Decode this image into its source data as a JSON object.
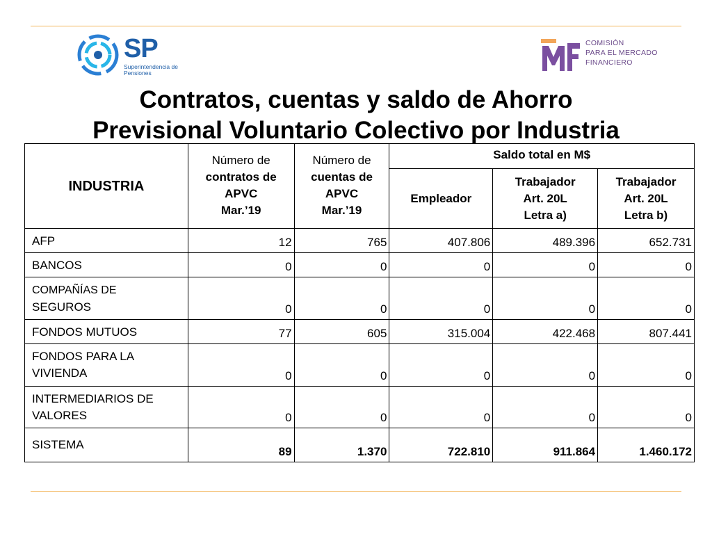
{
  "header": {
    "sp_logo": {
      "letters": "SP",
      "subtitle": "Superintendencia de Pensiones"
    },
    "cmf_logo": {
      "line1": "COMISIÓN",
      "line2": "PARA EL MERCADO",
      "line3": "FINANCIERO"
    }
  },
  "title": {
    "line1": "Contratos, cuentas y saldo de Ahorro",
    "line2": "Previsional Voluntario Colectivo por Industria"
  },
  "table": {
    "headers": {
      "industria": "INDUSTRIA",
      "contratos": {
        "l1": "Número de",
        "l2": "contratos de",
        "l3": "APVC",
        "l4": "Mar.’19"
      },
      "cuentas": {
        "l1": "Número de",
        "l2": "cuentas de",
        "l3": "APVC",
        "l4": "Mar.’19"
      },
      "saldo_total": "Saldo total en M$",
      "empleador": "Empleador",
      "trab_a": {
        "l1": "Trabajador",
        "l2": "Art. 20L",
        "l3": "Letra a)"
      },
      "trab_b": {
        "l1": "Trabajador",
        "l2": "Art. 20L",
        "l3": "Letra b)"
      }
    },
    "rows": [
      {
        "name": "AFP",
        "contratos": "12",
        "cuentas": "765",
        "empleador": "407.806",
        "trab_a": "489.396",
        "trab_b": "652.731"
      },
      {
        "name": "BANCOS",
        "contratos": "0",
        "cuentas": "0",
        "empleador": "0",
        "trab_a": "0",
        "trab_b": "0"
      },
      {
        "name_l1": "COMPAÑÍAS DE",
        "name_l2": "SEGUROS",
        "contratos": "0",
        "cuentas": "0",
        "empleador": "0",
        "trab_a": "0",
        "trab_b": "0"
      },
      {
        "name": "FONDOS MUTUOS",
        "contratos": "77",
        "cuentas": "605",
        "empleador": "315.004",
        "trab_a": "422.468",
        "trab_b": "807.441"
      },
      {
        "name_l1": "FONDOS PARA LA",
        "name_l2": "VIVIENDA",
        "contratos": "0",
        "cuentas": "0",
        "empleador": "0",
        "trab_a": "0",
        "trab_b": "0"
      },
      {
        "name_l1": "INTERMEDIARIOS DE",
        "name_l2": "VALORES",
        "contratos": "0",
        "cuentas": "0",
        "empleador": "0",
        "trab_a": "0",
        "trab_b": "0"
      }
    ],
    "total": {
      "name": "SISTEMA",
      "contratos": "89",
      "cuentas": "1.370",
      "empleador": "722.810",
      "trab_a": "911.864",
      "trab_b": "1.460.172"
    }
  }
}
